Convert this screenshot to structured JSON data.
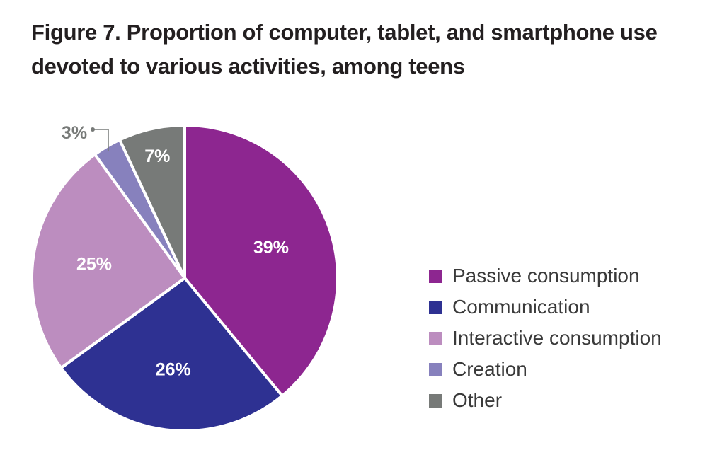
{
  "chart_data": {
    "type": "pie",
    "title": "Figure 7. Proportion of computer, tablet, and smartphone use devoted to various activities, among teens",
    "slices": [
      {
        "label": "Passive consumption",
        "value": 39,
        "display": "39%",
        "color": "#8d2690"
      },
      {
        "label": "Communication",
        "value": 26,
        "display": "26%",
        "color": "#2e3192"
      },
      {
        "label": "Interactive consumption",
        "value": 25,
        "display": "25%",
        "color": "#bc8dbf"
      },
      {
        "label": "Creation",
        "value": 3,
        "display": "3%",
        "color": "#8781bd"
      },
      {
        "label": "Other",
        "value": 7,
        "display": "7%",
        "color": "#777a78"
      }
    ],
    "start": "top",
    "direction": "clockwise",
    "legend_position": "right"
  }
}
